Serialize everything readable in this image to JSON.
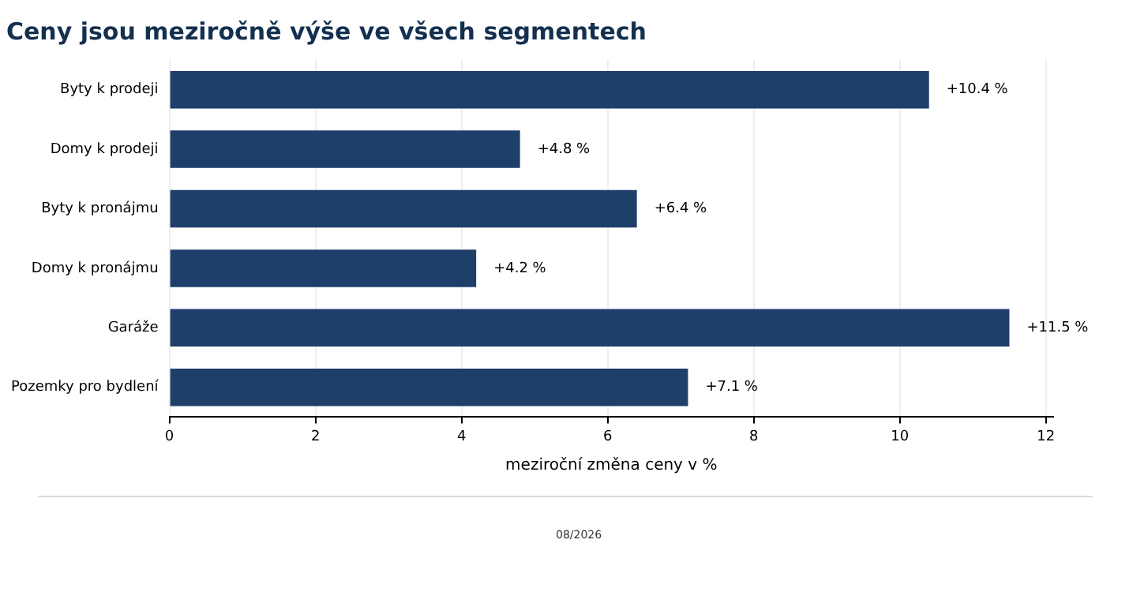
{
  "chart_data": {
    "type": "bar",
    "orientation": "horizontal",
    "title": "Ceny jsou meziročně výše ve všech segmentech",
    "xlabel": "meziroční změna ceny v %",
    "categories": [
      "Byty k prodeji",
      "Domy k prodeji",
      "Byty k pronájmu",
      "Domy k pronájmu",
      "Garáže",
      "Pozemky pro bydlení"
    ],
    "values": [
      10.4,
      4.8,
      6.4,
      4.2,
      11.5,
      7.1
    ],
    "value_labels": [
      "+10.4 %",
      "+4.8 %",
      "+6.4 %",
      "+4.2 %",
      "+11.5 %",
      "+7.1 %"
    ],
    "color": "#1f3f6b",
    "xlim": [
      0,
      12.1
    ],
    "xticks": [
      0,
      2,
      4,
      6,
      8,
      10,
      12
    ],
    "grid": "x",
    "annotations": [
      "08/2026"
    ]
  }
}
